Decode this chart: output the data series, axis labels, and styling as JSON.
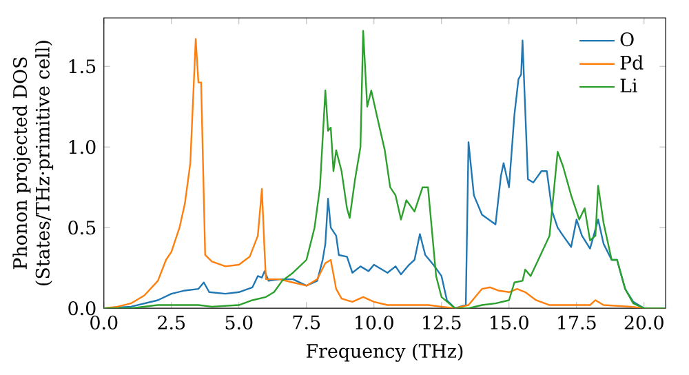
{
  "chart_data": {
    "type": "line",
    "xlabel": "Frequency (THz)",
    "ylabel": "Phonon projected DOS\n(States/THz·primitive cell)",
    "xlim": [
      0,
      20.8
    ],
    "ylim": [
      0,
      1.8
    ],
    "xticks": [
      {
        "value": 0,
        "label": "0.0"
      },
      {
        "value": 2.5,
        "label": "2.5"
      },
      {
        "value": 5,
        "label": "5.0"
      },
      {
        "value": 7.5,
        "label": "7.5"
      },
      {
        "value": 10,
        "label": "10.0"
      },
      {
        "value": 12.5,
        "label": "12.5"
      },
      {
        "value": 15,
        "label": "15.0"
      },
      {
        "value": 17.5,
        "label": "17.5"
      },
      {
        "value": 20,
        "label": "20.0"
      }
    ],
    "yticks": [
      {
        "value": 0,
        "label": "0.0"
      },
      {
        "value": 0.5,
        "label": "0.5"
      },
      {
        "value": 1,
        "label": "1.0"
      },
      {
        "value": 1.5,
        "label": "1.5"
      }
    ],
    "legend": "top right",
    "grid": false,
    "series": [
      {
        "name": "O",
        "color": "#1f77b4",
        "x": [
          0,
          1,
          2,
          2.5,
          3,
          3.5,
          3.7,
          3.9,
          4.5,
          5,
          5.5,
          5.7,
          5.85,
          5.95,
          6.1,
          6.5,
          7,
          7.5,
          7.9,
          8.1,
          8.2,
          8.3,
          8.4,
          8.6,
          8.7,
          9,
          9.2,
          9.5,
          9.8,
          10,
          10.5,
          10.8,
          11,
          11.3,
          11.5,
          11.7,
          11.9,
          12.2,
          12.5,
          12.7,
          13,
          13.4,
          13.5,
          13.7,
          14,
          14.5,
          14.7,
          14.8,
          15,
          15.2,
          15.35,
          15.45,
          15.5,
          15.7,
          15.9,
          16.2,
          16.4,
          16.6,
          16.8,
          17,
          17.3,
          17.5,
          17.7,
          18,
          18.3,
          18.5,
          18.8,
          19,
          19.3,
          19.6,
          20,
          20.8
        ],
        "values": [
          0,
          0.01,
          0.05,
          0.09,
          0.11,
          0.12,
          0.16,
          0.1,
          0.09,
          0.1,
          0.13,
          0.2,
          0.19,
          0.23,
          0.17,
          0.18,
          0.18,
          0.14,
          0.17,
          0.3,
          0.4,
          0.68,
          0.5,
          0.45,
          0.33,
          0.32,
          0.22,
          0.26,
          0.23,
          0.27,
          0.22,
          0.26,
          0.21,
          0.27,
          0.3,
          0.46,
          0.33,
          0.27,
          0.2,
          0.05,
          0,
          0.02,
          1.03,
          0.7,
          0.58,
          0.52,
          0.82,
          0.9,
          0.75,
          1.2,
          1.42,
          1.45,
          1.66,
          0.8,
          0.78,
          0.85,
          0.85,
          0.6,
          0.5,
          0.45,
          0.38,
          0.55,
          0.45,
          0.37,
          0.55,
          0.4,
          0.3,
          0.3,
          0.12,
          0.04,
          0,
          0
        ]
      },
      {
        "name": "Pd",
        "color": "#ff7f0e",
        "x": [
          0,
          0.5,
          1,
          1.5,
          2,
          2.3,
          2.5,
          2.8,
          3,
          3.2,
          3.4,
          3.5,
          3.6,
          3.75,
          4,
          4.5,
          5,
          5.4,
          5.7,
          5.85,
          5.95,
          6,
          6.5,
          7,
          7.5,
          7.9,
          8.2,
          8.4,
          8.6,
          8.8,
          9.2,
          9.6,
          10,
          10.5,
          11,
          12,
          12.5,
          13,
          13.5,
          14,
          14.3,
          14.6,
          15,
          15.3,
          15.6,
          16,
          16.5,
          17,
          17.5,
          18,
          18.2,
          18.5,
          19.5,
          20,
          20.8
        ],
        "values": [
          0,
          0.01,
          0.03,
          0.08,
          0.17,
          0.3,
          0.35,
          0.5,
          0.65,
          0.9,
          1.67,
          1.4,
          1.4,
          0.33,
          0.29,
          0.26,
          0.27,
          0.32,
          0.45,
          0.74,
          0.35,
          0.18,
          0.18,
          0.16,
          0.14,
          0.18,
          0.28,
          0.3,
          0.12,
          0.06,
          0.04,
          0.07,
          0.04,
          0.02,
          0.02,
          0.02,
          0.01,
          0,
          0.02,
          0.12,
          0.13,
          0.11,
          0.1,
          0.12,
          0.1,
          0.05,
          0.02,
          0.02,
          0.02,
          0.02,
          0.05,
          0.02,
          0.01,
          0,
          0
        ]
      },
      {
        "name": "Li",
        "color": "#2ca02c",
        "x": [
          0,
          1,
          2,
          2.5,
          3.5,
          4,
          5,
          5.5,
          6,
          6.3,
          6.6,
          7,
          7.5,
          7.8,
          8,
          8.2,
          8.3,
          8.4,
          8.5,
          8.6,
          8.8,
          9,
          9.1,
          9.3,
          9.5,
          9.6,
          9.75,
          9.9,
          10.1,
          10.4,
          10.6,
          10.8,
          11,
          11.2,
          11.5,
          11.8,
          12,
          12.3,
          12.5,
          13,
          13.5,
          14,
          14.5,
          15,
          15.2,
          15.5,
          15.6,
          15.8,
          16,
          16.5,
          16.8,
          17,
          17.3,
          17.6,
          17.8,
          18,
          18.2,
          18.3,
          18.5,
          18.8,
          19,
          19.3,
          19.6,
          20,
          20.8
        ],
        "values": [
          0,
          0,
          0.02,
          0.02,
          0.02,
          0.01,
          0.02,
          0.05,
          0.07,
          0.1,
          0.17,
          0.22,
          0.3,
          0.5,
          0.75,
          1.35,
          1.1,
          1.12,
          0.85,
          0.98,
          0.85,
          0.62,
          0.56,
          0.8,
          1,
          1.72,
          1.25,
          1.35,
          1.2,
          0.98,
          0.75,
          0.7,
          0.55,
          0.67,
          0.6,
          0.75,
          0.75,
          0.2,
          0.07,
          0,
          0,
          0.02,
          0.03,
          0.05,
          0.16,
          0.17,
          0.24,
          0.2,
          0.27,
          0.45,
          0.97,
          0.88,
          0.7,
          0.55,
          0.62,
          0.42,
          0.45,
          0.76,
          0.53,
          0.3,
          0.3,
          0.12,
          0.03,
          0,
          0
        ]
      }
    ]
  }
}
